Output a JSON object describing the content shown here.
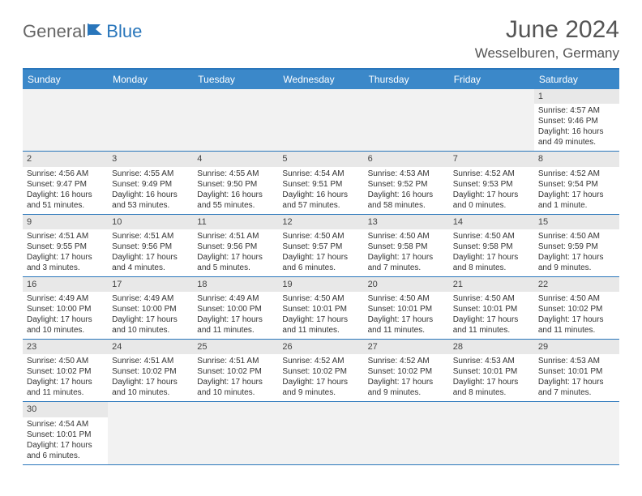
{
  "logo": {
    "part1": "General",
    "part2": "Blue"
  },
  "title": "June 2024",
  "location": "Wesselburen, Germany",
  "colors": {
    "header_bg": "#3b88c9",
    "header_border": "#2976bb",
    "daynum_bg": "#e8e8e8",
    "empty_bg": "#f2f2f2",
    "text": "#333333",
    "title_text": "#555555"
  },
  "weekdays": [
    "Sunday",
    "Monday",
    "Tuesday",
    "Wednesday",
    "Thursday",
    "Friday",
    "Saturday"
  ],
  "weeks": [
    [
      null,
      null,
      null,
      null,
      null,
      null,
      {
        "n": "1",
        "sr": "Sunrise: 4:57 AM",
        "ss": "Sunset: 9:46 PM",
        "dl": "Daylight: 16 hours and 49 minutes."
      }
    ],
    [
      {
        "n": "2",
        "sr": "Sunrise: 4:56 AM",
        "ss": "Sunset: 9:47 PM",
        "dl": "Daylight: 16 hours and 51 minutes."
      },
      {
        "n": "3",
        "sr": "Sunrise: 4:55 AM",
        "ss": "Sunset: 9:49 PM",
        "dl": "Daylight: 16 hours and 53 minutes."
      },
      {
        "n": "4",
        "sr": "Sunrise: 4:55 AM",
        "ss": "Sunset: 9:50 PM",
        "dl": "Daylight: 16 hours and 55 minutes."
      },
      {
        "n": "5",
        "sr": "Sunrise: 4:54 AM",
        "ss": "Sunset: 9:51 PM",
        "dl": "Daylight: 16 hours and 57 minutes."
      },
      {
        "n": "6",
        "sr": "Sunrise: 4:53 AM",
        "ss": "Sunset: 9:52 PM",
        "dl": "Daylight: 16 hours and 58 minutes."
      },
      {
        "n": "7",
        "sr": "Sunrise: 4:52 AM",
        "ss": "Sunset: 9:53 PM",
        "dl": "Daylight: 17 hours and 0 minutes."
      },
      {
        "n": "8",
        "sr": "Sunrise: 4:52 AM",
        "ss": "Sunset: 9:54 PM",
        "dl": "Daylight: 17 hours and 1 minute."
      }
    ],
    [
      {
        "n": "9",
        "sr": "Sunrise: 4:51 AM",
        "ss": "Sunset: 9:55 PM",
        "dl": "Daylight: 17 hours and 3 minutes."
      },
      {
        "n": "10",
        "sr": "Sunrise: 4:51 AM",
        "ss": "Sunset: 9:56 PM",
        "dl": "Daylight: 17 hours and 4 minutes."
      },
      {
        "n": "11",
        "sr": "Sunrise: 4:51 AM",
        "ss": "Sunset: 9:56 PM",
        "dl": "Daylight: 17 hours and 5 minutes."
      },
      {
        "n": "12",
        "sr": "Sunrise: 4:50 AM",
        "ss": "Sunset: 9:57 PM",
        "dl": "Daylight: 17 hours and 6 minutes."
      },
      {
        "n": "13",
        "sr": "Sunrise: 4:50 AM",
        "ss": "Sunset: 9:58 PM",
        "dl": "Daylight: 17 hours and 7 minutes."
      },
      {
        "n": "14",
        "sr": "Sunrise: 4:50 AM",
        "ss": "Sunset: 9:58 PM",
        "dl": "Daylight: 17 hours and 8 minutes."
      },
      {
        "n": "15",
        "sr": "Sunrise: 4:50 AM",
        "ss": "Sunset: 9:59 PM",
        "dl": "Daylight: 17 hours and 9 minutes."
      }
    ],
    [
      {
        "n": "16",
        "sr": "Sunrise: 4:49 AM",
        "ss": "Sunset: 10:00 PM",
        "dl": "Daylight: 17 hours and 10 minutes."
      },
      {
        "n": "17",
        "sr": "Sunrise: 4:49 AM",
        "ss": "Sunset: 10:00 PM",
        "dl": "Daylight: 17 hours and 10 minutes."
      },
      {
        "n": "18",
        "sr": "Sunrise: 4:49 AM",
        "ss": "Sunset: 10:00 PM",
        "dl": "Daylight: 17 hours and 11 minutes."
      },
      {
        "n": "19",
        "sr": "Sunrise: 4:50 AM",
        "ss": "Sunset: 10:01 PM",
        "dl": "Daylight: 17 hours and 11 minutes."
      },
      {
        "n": "20",
        "sr": "Sunrise: 4:50 AM",
        "ss": "Sunset: 10:01 PM",
        "dl": "Daylight: 17 hours and 11 minutes."
      },
      {
        "n": "21",
        "sr": "Sunrise: 4:50 AM",
        "ss": "Sunset: 10:01 PM",
        "dl": "Daylight: 17 hours and 11 minutes."
      },
      {
        "n": "22",
        "sr": "Sunrise: 4:50 AM",
        "ss": "Sunset: 10:02 PM",
        "dl": "Daylight: 17 hours and 11 minutes."
      }
    ],
    [
      {
        "n": "23",
        "sr": "Sunrise: 4:50 AM",
        "ss": "Sunset: 10:02 PM",
        "dl": "Daylight: 17 hours and 11 minutes."
      },
      {
        "n": "24",
        "sr": "Sunrise: 4:51 AM",
        "ss": "Sunset: 10:02 PM",
        "dl": "Daylight: 17 hours and 10 minutes."
      },
      {
        "n": "25",
        "sr": "Sunrise: 4:51 AM",
        "ss": "Sunset: 10:02 PM",
        "dl": "Daylight: 17 hours and 10 minutes."
      },
      {
        "n": "26",
        "sr": "Sunrise: 4:52 AM",
        "ss": "Sunset: 10:02 PM",
        "dl": "Daylight: 17 hours and 9 minutes."
      },
      {
        "n": "27",
        "sr": "Sunrise: 4:52 AM",
        "ss": "Sunset: 10:02 PM",
        "dl": "Daylight: 17 hours and 9 minutes."
      },
      {
        "n": "28",
        "sr": "Sunrise: 4:53 AM",
        "ss": "Sunset: 10:01 PM",
        "dl": "Daylight: 17 hours and 8 minutes."
      },
      {
        "n": "29",
        "sr": "Sunrise: 4:53 AM",
        "ss": "Sunset: 10:01 PM",
        "dl": "Daylight: 17 hours and 7 minutes."
      }
    ],
    [
      {
        "n": "30",
        "sr": "Sunrise: 4:54 AM",
        "ss": "Sunset: 10:01 PM",
        "dl": "Daylight: 17 hours and 6 minutes."
      },
      null,
      null,
      null,
      null,
      null,
      null
    ]
  ]
}
